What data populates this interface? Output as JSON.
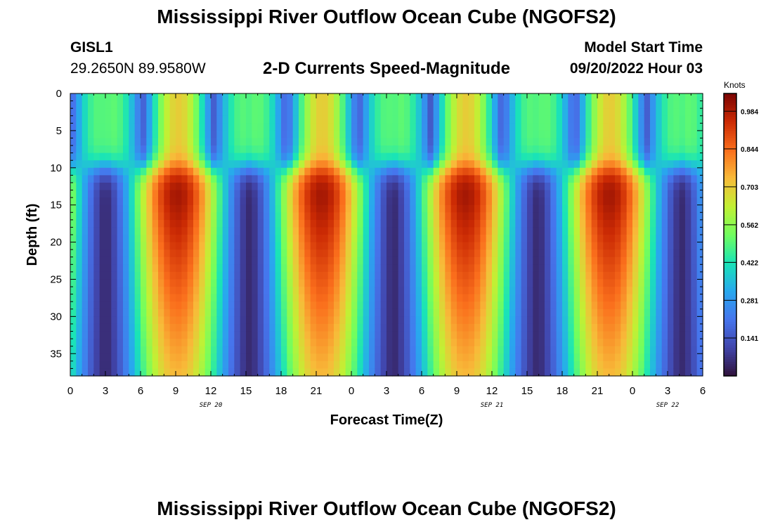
{
  "header": {
    "title": "Mississippi River Outflow Ocean Cube (NGOFS2)",
    "station_id": "GISL1",
    "coordinates": "29.2650N  89.9580W",
    "plot_title": "2-D Currents Speed-Magnitude",
    "model_start_label": "Model Start Time",
    "model_start_value": "09/20/2022 Hour 03"
  },
  "footer": {
    "title": "Mississippi River Outflow Ocean Cube (NGOFS2)"
  },
  "chart_data": {
    "type": "heatmap",
    "xlabel": "Forecast Time(Z)",
    "ylabel": "Depth (ft)",
    "x_ticks": [
      "0",
      "3",
      "6",
      "9",
      "12",
      "15",
      "18",
      "21",
      "0",
      "3",
      "6",
      "9",
      "12",
      "15",
      "18",
      "21",
      "0",
      "3",
      "6"
    ],
    "x_range_hours": [
      0,
      54
    ],
    "date_labels": [
      {
        "text": "SEP 20",
        "hour": 12
      },
      {
        "text": "SEP 21",
        "hour": 36
      },
      {
        "text": "SEP 22",
        "hour": 51
      }
    ],
    "y_ticks": [
      0,
      5,
      10,
      15,
      20,
      25,
      30,
      35
    ],
    "y_range": [
      0,
      38
    ],
    "y_inverted": true,
    "colorbar": {
      "units": "Knots",
      "ticks": [
        "0.984",
        "0.844",
        "0.703",
        "0.562",
        "0.422",
        "0.281",
        "0.141"
      ],
      "tick_values": [
        0.984,
        0.844,
        0.703,
        0.562,
        0.422,
        0.281,
        0.141
      ],
      "range": [
        0.0,
        1.05
      ]
    },
    "strong_current_peaks_hours": [
      8,
      20.5,
      33,
      45
    ],
    "slack_water_minima_hours": [
      3,
      15
    ]
  }
}
